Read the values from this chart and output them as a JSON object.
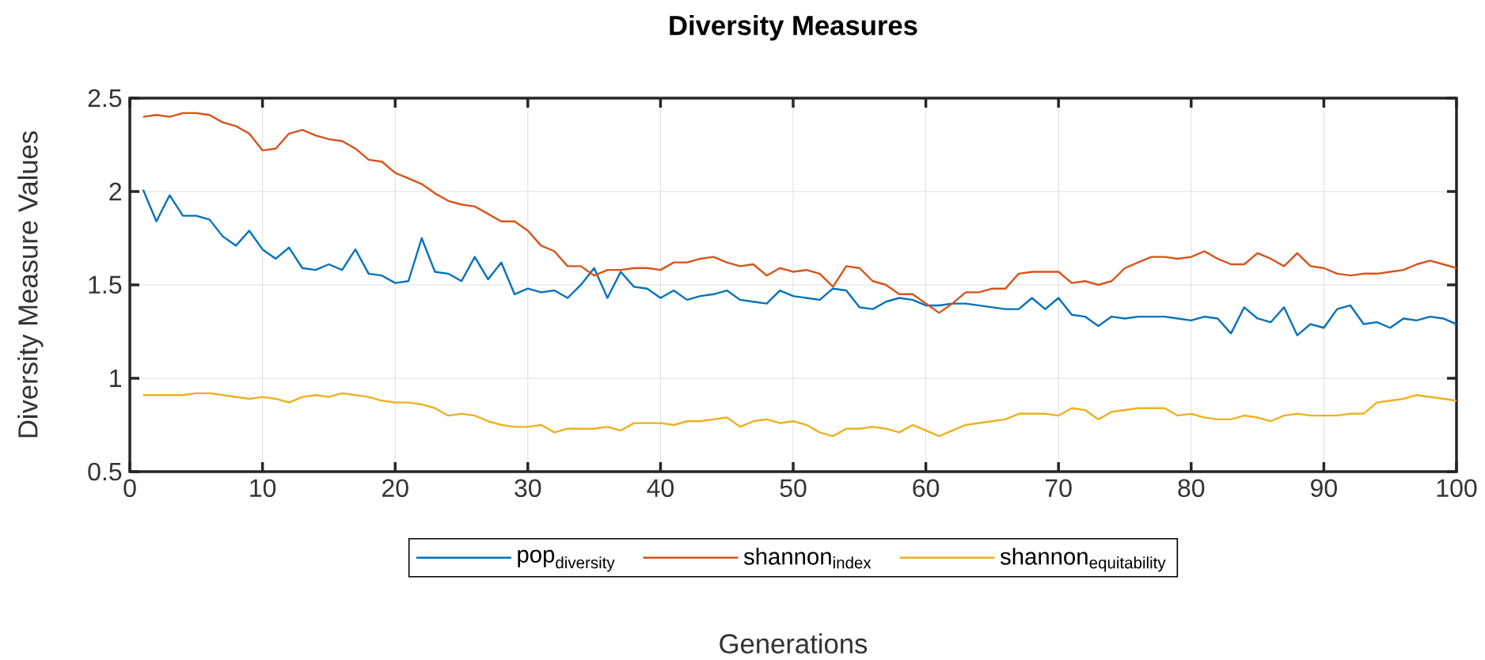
{
  "chart_data": {
    "type": "line",
    "title": "Diversity Measures",
    "xlabel": "Generations",
    "ylabel": "Diversity Measure Values",
    "x": [
      1,
      2,
      3,
      4,
      5,
      6,
      7,
      8,
      9,
      10,
      11,
      12,
      13,
      14,
      15,
      16,
      17,
      18,
      19,
      20,
      21,
      22,
      23,
      24,
      25,
      26,
      27,
      28,
      29,
      30,
      31,
      32,
      33,
      34,
      35,
      36,
      37,
      38,
      39,
      40,
      41,
      42,
      43,
      44,
      45,
      46,
      47,
      48,
      49,
      50,
      51,
      52,
      53,
      54,
      55,
      56,
      57,
      58,
      59,
      60,
      61,
      62,
      63,
      64,
      65,
      66,
      67,
      68,
      69,
      70,
      71,
      72,
      73,
      74,
      75,
      76,
      77,
      78,
      79,
      80,
      81,
      82,
      83,
      84,
      85,
      86,
      87,
      88,
      89,
      90,
      91,
      92,
      93,
      94,
      95,
      96,
      97,
      98,
      99,
      100
    ],
    "series": [
      {
        "name": "\\mathrm{pop}_{\\mathrm{diversity}}",
        "color": "#0072bd",
        "values": [
          2.01,
          1.84,
          1.98,
          1.87,
          1.87,
          1.85,
          1.76,
          1.71,
          1.79,
          1.69,
          1.64,
          1.7,
          1.59,
          1.58,
          1.61,
          1.58,
          1.69,
          1.56,
          1.55,
          1.51,
          1.52,
          1.75,
          1.57,
          1.56,
          1.52,
          1.65,
          1.53,
          1.62,
          1.45,
          1.48,
          1.46,
          1.47,
          1.43,
          1.5,
          1.59,
          1.43,
          1.57,
          1.49,
          1.48,
          1.43,
          1.47,
          1.42,
          1.44,
          1.45,
          1.47,
          1.42,
          1.41,
          1.4,
          1.47,
          1.44,
          1.43,
          1.42,
          1.48,
          1.47,
          1.38,
          1.37,
          1.41,
          1.43,
          1.42,
          1.39,
          1.39,
          1.4,
          1.4,
          1.39,
          1.38,
          1.37,
          1.37,
          1.43,
          1.37,
          1.43,
          1.34,
          1.33,
          1.28,
          1.33,
          1.32,
          1.33,
          1.33,
          1.33,
          1.32,
          1.31,
          1.33,
          1.32,
          1.24,
          1.38,
          1.32,
          1.3,
          1.38,
          1.23,
          1.29,
          1.27,
          1.37,
          1.39,
          1.29,
          1.3,
          1.27,
          1.32,
          1.31,
          1.33,
          1.32,
          1.29
        ]
      },
      {
        "name": "\\mathrm{shannon}_{\\mathrm{index}}",
        "color": "#d95319",
        "values": [
          2.4,
          2.41,
          2.4,
          2.42,
          2.42,
          2.41,
          2.37,
          2.35,
          2.31,
          2.22,
          2.23,
          2.31,
          2.33,
          2.3,
          2.28,
          2.27,
          2.23,
          2.17,
          2.16,
          2.1,
          2.07,
          2.04,
          1.99,
          1.95,
          1.93,
          1.92,
          1.88,
          1.84,
          1.84,
          1.79,
          1.71,
          1.68,
          1.6,
          1.6,
          1.55,
          1.58,
          1.58,
          1.59,
          1.59,
          1.58,
          1.62,
          1.62,
          1.64,
          1.65,
          1.62,
          1.6,
          1.61,
          1.55,
          1.59,
          1.57,
          1.58,
          1.56,
          1.49,
          1.6,
          1.59,
          1.52,
          1.5,
          1.45,
          1.45,
          1.4,
          1.35,
          1.4,
          1.46,
          1.46,
          1.48,
          1.48,
          1.56,
          1.57,
          1.57,
          1.57,
          1.51,
          1.52,
          1.5,
          1.52,
          1.59,
          1.62,
          1.65,
          1.65,
          1.64,
          1.65,
          1.68,
          1.64,
          1.61,
          1.61,
          1.67,
          1.64,
          1.6,
          1.67,
          1.6,
          1.59,
          1.56,
          1.55,
          1.56,
          1.56,
          1.57,
          1.58,
          1.61,
          1.63,
          1.61,
          1.59
        ]
      },
      {
        "name": "\\mathrm{shannon}_{\\mathrm{equitability}}",
        "color": "#edb120",
        "values": [
          0.91,
          0.91,
          0.91,
          0.91,
          0.92,
          0.92,
          0.91,
          0.9,
          0.89,
          0.9,
          0.89,
          0.87,
          0.9,
          0.91,
          0.9,
          0.92,
          0.91,
          0.9,
          0.88,
          0.87,
          0.87,
          0.86,
          0.84,
          0.8,
          0.81,
          0.8,
          0.77,
          0.75,
          0.74,
          0.74,
          0.75,
          0.71,
          0.73,
          0.73,
          0.73,
          0.74,
          0.72,
          0.76,
          0.76,
          0.76,
          0.75,
          0.77,
          0.77,
          0.78,
          0.79,
          0.74,
          0.77,
          0.78,
          0.76,
          0.77,
          0.75,
          0.71,
          0.69,
          0.73,
          0.73,
          0.74,
          0.73,
          0.71,
          0.75,
          0.72,
          0.69,
          0.72,
          0.75,
          0.76,
          0.77,
          0.78,
          0.81,
          0.81,
          0.81,
          0.8,
          0.84,
          0.83,
          0.78,
          0.82,
          0.83,
          0.84,
          0.84,
          0.84,
          0.8,
          0.81,
          0.79,
          0.78,
          0.78,
          0.8,
          0.79,
          0.77,
          0.8,
          0.81,
          0.8,
          0.8,
          0.8,
          0.81,
          0.81,
          0.87,
          0.88,
          0.89,
          0.91,
          0.9,
          0.89,
          0.88
        ]
      }
    ],
    "xlim": [
      0,
      100
    ],
    "ylim": [
      0.5,
      2.5
    ],
    "xticks": [
      0,
      10,
      20,
      30,
      40,
      50,
      60,
      70,
      80,
      90,
      100
    ],
    "yticks": [
      0.5,
      1,
      1.5,
      2,
      2.5
    ],
    "grid": true,
    "legend": "bottom"
  }
}
